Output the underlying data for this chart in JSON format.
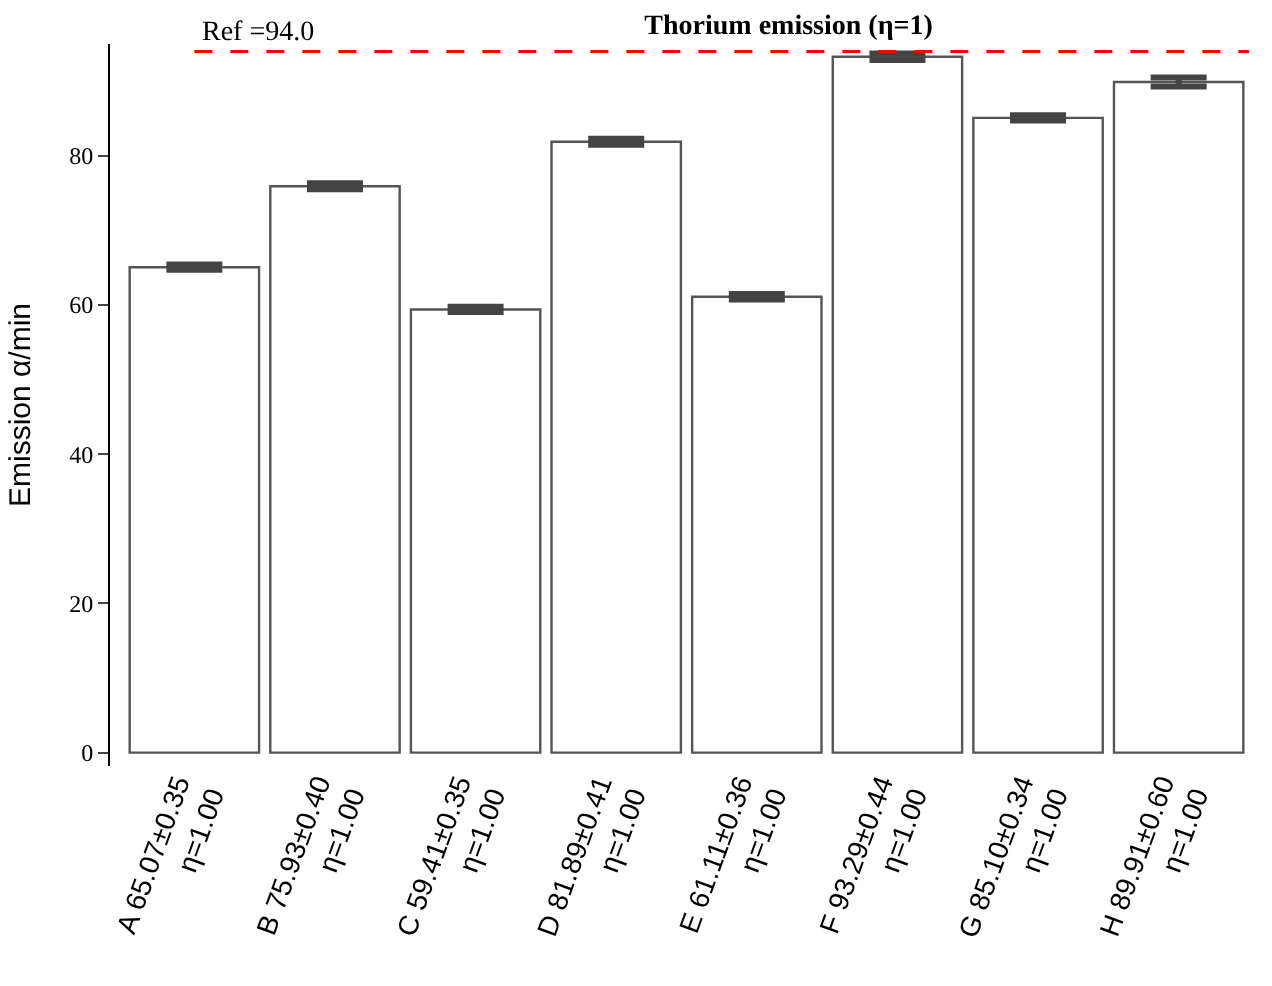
{
  "chart_data": {
    "type": "bar",
    "title": "Thorium emission (η=1)",
    "ylabel": "Emission α/min",
    "categories": [
      "A 65.07±0.35\nη=1.00",
      "B 75.93±0.40\nη=1.00",
      "C 59.41±0.35\nη=1.00",
      "D 81.89±0.41\nη=1.00",
      "E 61.11±0.36\nη=1.00",
      "F 93.29±0.44\nη=1.00",
      "G 85.10±0.34\nη=1.00",
      "H 89.91±0.60\nη=1.00"
    ],
    "series": [
      {
        "color": "#ffffff",
        "values": [
          65.07,
          75.93,
          59.41,
          81.89,
          61.11,
          93.29,
          85.1,
          89.91
        ],
        "errors": [
          0.35,
          0.4,
          0.35,
          0.41,
          0.36,
          0.44,
          0.34,
          0.6
        ]
      }
    ],
    "ylim": [
      -1.8,
      95
    ],
    "yticks": [
      0,
      20,
      40,
      60,
      80
    ],
    "ref_lines": [
      {
        "axis": "y",
        "value": 94.0,
        "label": "Ref =94.0",
        "color": "#ff0000",
        "line_style": "dashed"
      }
    ]
  }
}
